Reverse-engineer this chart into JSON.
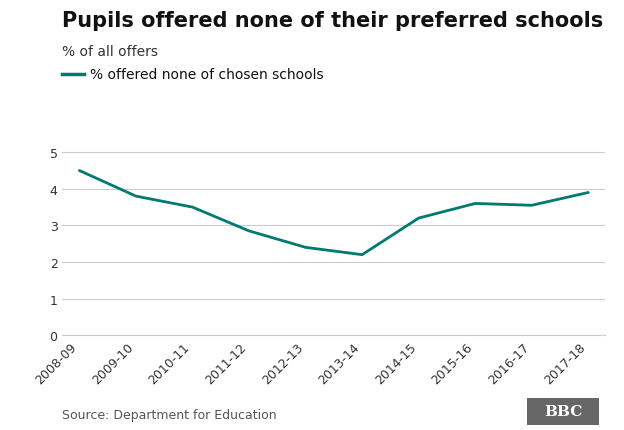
{
  "title": "Pupils offered none of their preferred schools",
  "ylabel": "% of all offers",
  "legend_label": "% offered none of chosen schools",
  "source": "Source: Department for Education",
  "bbc_label": "BBC",
  "line_color": "#007a6e",
  "background_color": "#ffffff",
  "grid_color": "#cccccc",
  "x_labels": [
    "2008-09",
    "2009-10",
    "2010-11",
    "2011-12",
    "2012-13",
    "2013-14",
    "2014-15",
    "2015-16",
    "2016-17",
    "2017-18"
  ],
  "y_values": [
    4.5,
    3.8,
    3.5,
    2.85,
    2.4,
    2.2,
    3.2,
    3.6,
    3.55,
    3.9
  ],
  "ylim": [
    0,
    5.3
  ],
  "yticks": [
    0,
    1,
    2,
    3,
    4,
    5
  ],
  "title_fontsize": 15,
  "ylabel_fontsize": 10,
  "legend_fontsize": 10,
  "tick_fontsize": 9,
  "source_fontsize": 9,
  "line_width": 2.0
}
